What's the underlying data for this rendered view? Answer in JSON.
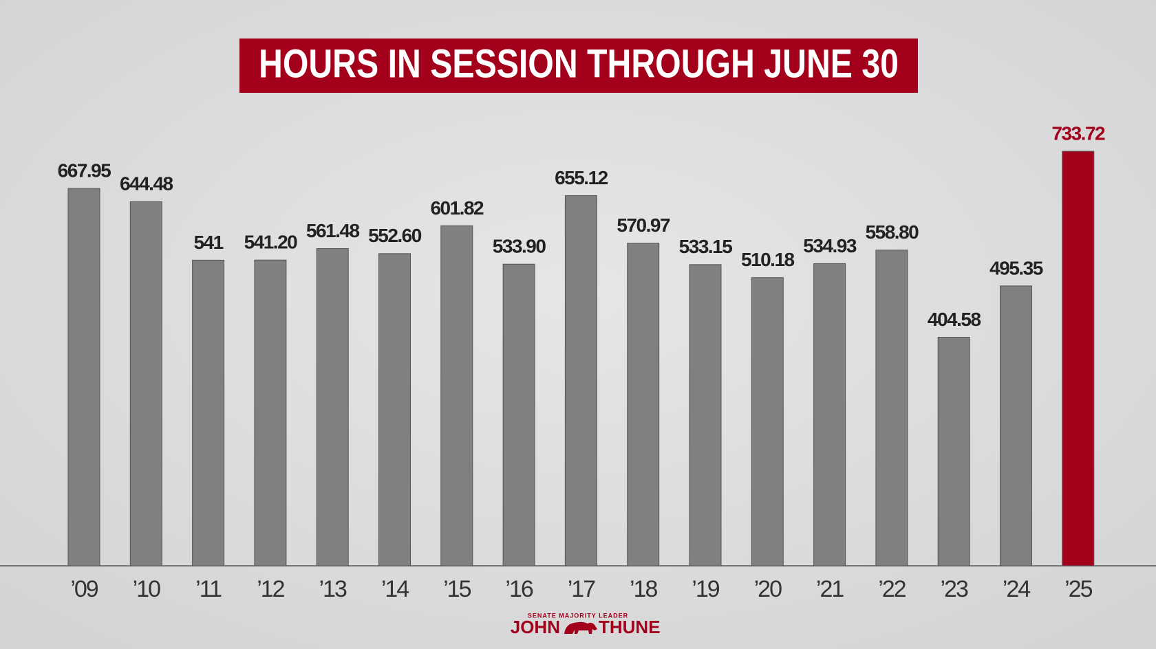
{
  "chart_data": {
    "type": "bar",
    "title": "HOURS IN SESSION THROUGH JUNE 30",
    "categories": [
      "’09",
      "’10",
      "’11",
      "’12",
      "’13",
      "’14",
      "’15",
      "’16",
      "’17",
      "’18",
      "’19",
      "’20",
      "’21",
      "’22",
      "’23",
      "’24",
      "’25"
    ],
    "values": [
      667.95,
      644.48,
      541,
      541.2,
      561.48,
      552.6,
      601.82,
      533.9,
      655.12,
      570.97,
      533.15,
      510.18,
      534.93,
      558.8,
      404.58,
      495.35,
      733.72
    ],
    "value_labels": [
      "667.95",
      "644.48",
      "541",
      "541.20",
      "561.48",
      "552.60",
      "601.82",
      "533.90",
      "655.12",
      "570.97",
      "533.15",
      "510.18",
      "534.93",
      "558.80",
      "404.58",
      "495.35",
      "733.72"
    ],
    "colors": [
      "#808080",
      "#808080",
      "#808080",
      "#808080",
      "#808080",
      "#808080",
      "#808080",
      "#808080",
      "#808080",
      "#808080",
      "#808080",
      "#808080",
      "#808080",
      "#808080",
      "#808080",
      "#808080",
      "#a3001b"
    ]
  },
  "branding": {
    "office": "SENATE MAJORITY LEADER",
    "first_name": "JOHN",
    "last_name": "THUNE"
  }
}
